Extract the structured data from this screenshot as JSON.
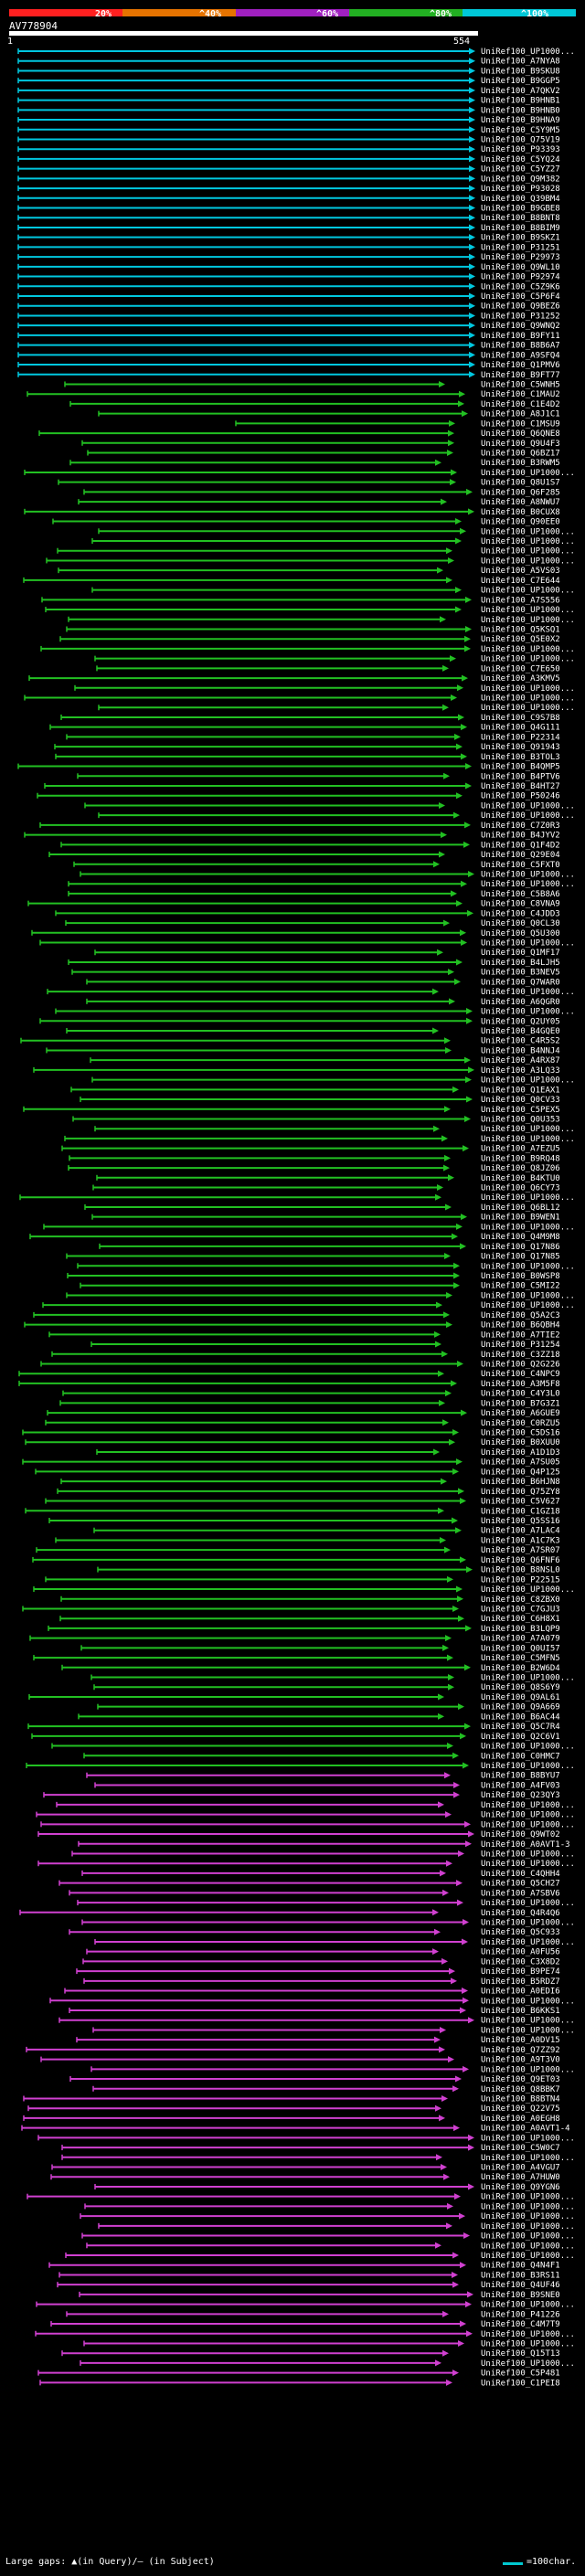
{
  "scale": {
    "labels": [
      "20%",
      "^40%",
      "^60%",
      "^80%",
      "^100%"
    ],
    "colors": [
      "#ff2020",
      "#e67300",
      "#a020c0",
      "#22b022",
      "#00c8d8"
    ]
  },
  "query": {
    "id": "AV778904",
    "start": "1",
    "end": "554"
  },
  "hit_labels": [
    "UniRef100_UP1000...",
    "UniRef100_A7NYA8",
    "UniRef100_B9SKU8",
    "UniRef100_B9GGP5",
    "UniRef100_A7QKV2",
    "UniRef100_B9HNB1",
    "UniRef100_B9HNB0",
    "UniRef100_B9HNA9",
    "UniRef100_C5Y9M5",
    "UniRef100_Q75V19",
    "UniRef100_P93393",
    "UniRef100_C5YQ24",
    "UniRef100_C5YZ27",
    "UniRef100_Q9M382",
    "UniRef100_P93028",
    "UniRef100_Q39BM4",
    "UniRef100_B9GBE8",
    "UniRef100_B8BNT8",
    "UniRef100_B8BIM9",
    "UniRef100_B9SKZ1",
    "UniRef100_P31251",
    "UniRef100_P29973",
    "UniRef100_Q9WL10",
    "UniRef100_P92974",
    "UniRef100_C5Z9K6",
    "UniRef100_C5P6F4",
    "UniRef100_Q9BEZ6",
    "UniRef100_P31252",
    "UniRef100_Q9WNQ2",
    "UniRef100_B9FY11",
    "UniRef100_B8B6A7",
    "UniRef100_A9SFQ4",
    "UniRef100_Q1PMV6",
    "UniRef100_B9FT77",
    "UniRef100_C5WNH5",
    "UniRef100_C1MAU2",
    "UniRef100_C1E4D2",
    "UniRef100_A8J1C1",
    "UniRef100_C1MSU9",
    "UniRef100_Q6QNE8",
    "UniRef100_Q9U4F3",
    "UniRef100_Q6BZ17",
    "UniRef100_B3RWM5",
    "UniRef100_UP1000...",
    "UniRef100_Q8U1S7",
    "UniRef100_Q6F285",
    "UniRef100_A8NWU7",
    "UniRef100_B0CUX8",
    "UniRef100_Q90EE0",
    "UniRef100_UP1000...",
    "UniRef100_UP1000...",
    "UniRef100_UP1000...",
    "UniRef100_UP1000...",
    "UniRef100_A5VS03",
    "UniRef100_C7E644",
    "UniRef100_UP1000...",
    "UniRef100_A7S556",
    "UniRef100_UP1000...",
    "UniRef100_UP1000...",
    "UniRef100_Q5KSQ1",
    "UniRef100_Q5E0X2",
    "UniRef100_UP1000...",
    "UniRef100_UP1000...",
    "UniRef100_C7E650",
    "UniRef100_A3KMV5",
    "UniRef100_UP1000...",
    "UniRef100_UP1000...",
    "UniRef100_UP1000...",
    "UniRef100_C9S7B8",
    "UniRef100_Q4G111",
    "UniRef100_P22314",
    "UniRef100_Q91943",
    "UniRef100_B3TOL3",
    "UniRef100_B4QMP5",
    "UniRef100_B4PTV6",
    "UniRef100_B4HT27",
    "UniRef100_P50246",
    "UniRef100_UP1000...",
    "UniRef100_UP1000...",
    "UniRef100_C7Z0R3",
    "UniRef100_B4JYV2",
    "UniRef100_Q1F4D2",
    "UniRef100_Q29E04",
    "UniRef100_C5FXT0",
    "UniRef100_UP1000...",
    "UniRef100_UP1000...",
    "UniRef100_C5B8A6",
    "UniRef100_C8VNA9",
    "UniRef100_C4JDD3",
    "UniRef100_Q0CL30",
    "UniRef100_Q5U300",
    "UniRef100_UP1000...",
    "UniRef100_Q1MF17",
    "UniRef100_B4LJH5",
    "UniRef100_B3NEV5",
    "UniRef100_Q7WAR0",
    "UniRef100_UP1000...",
    "UniRef100_A6QGR0",
    "UniRef100_UP1000...",
    "UniRef100_Q2UY05",
    "UniRef100_B4GQE0",
    "UniRef100_C4R5S2",
    "UniRef100_B4NNJ4",
    "UniRef100_A4RX87",
    "UniRef100_A3LQ33",
    "UniRef100_UP1000...",
    "UniRef100_Q1EAX1",
    "UniRef100_Q0CV33",
    "UniRef100_C5PEX5",
    "UniRef100_Q0U353",
    "UniRef100_UP1000...",
    "UniRef100_UP1000...",
    "UniRef100_A7EZU5",
    "UniRef100_B9RQ48",
    "UniRef100_Q8JZ06",
    "UniRef100_B4KTU0",
    "UniRef100_Q6CY73",
    "UniRef100_UP1000...",
    "UniRef100_Q6BL12",
    "UniRef100_B9WEN1",
    "UniRef100_UP1000...",
    "UniRef100_Q4M9M8",
    "UniRef100_Q17N86",
    "UniRef100_Q17N85",
    "UniRef100_UP1000...",
    "UniRef100_B0WSP8",
    "UniRef100_C5MI22",
    "UniRef100_UP1000...",
    "UniRef100_UP1000...",
    "UniRef100_Q5A2C3",
    "UniRef100_B6QBH4",
    "UniRef100_A7TIE2",
    "UniRef100_P31254",
    "UniRef100_C3ZZ18",
    "UniRef100_Q2G226",
    "UniRef100_C4NPC9",
    "UniRef100_A3M5F8",
    "UniRef100_C4Y3L0",
    "UniRef100_B7G3Z1",
    "UniRef100_A6GUE9",
    "UniRef100_C0RZU5",
    "UniRef100_C5DS16",
    "UniRef100_B0XUU0",
    "UniRef100_A1D1D3",
    "UniRef100_A7SU05",
    "UniRef100_Q4P125",
    "UniRef100_B6HJN8",
    "UniRef100_Q75ZY8",
    "UniRef100_C5V627",
    "UniRef100_C1GZ18",
    "UniRef100_Q5SS16",
    "UniRef100_A7LAC4",
    "UniRef100_A1C7K3",
    "UniRef100_A7SR07",
    "UniRef100_Q6FNF6",
    "UniRef100_B8NSL0",
    "UniRef100_P22515",
    "UniRef100_UP1000...",
    "UniRef100_C8ZBX0",
    "UniRef100_C7GJU3",
    "UniRef100_C6H8X1",
    "UniRef100_B3LQP9",
    "UniRef100_A7A079",
    "UniRef100_Q0UI57",
    "UniRef100_C5MFN5",
    "UniRef100_B2W6D4",
    "UniRef100_UP1000...",
    "UniRef100_Q8S6Y9",
    "UniRef100_Q9AL61",
    "UniRef100_Q9A669",
    "UniRef100_B6AC44",
    "UniRef100_Q5C7R4",
    "UniRef100_Q2C6V1",
    "UniRef100_UP1000...",
    "UniRef100_C0HMC7",
    "UniRef100_UP1000...",
    "UniRef100_B8BYU7",
    "UniRef100_A4FV03",
    "UniRef100_Q23QY3",
    "UniRef100_UP1000...",
    "UniRef100_UP1000...",
    "UniRef100_UP1000...",
    "UniRef100_Q9WT02",
    "UniRef100_A0AVT1-3",
    "UniRef100_UP1000...",
    "UniRef100_UP1000...",
    "UniRef100_C4QHH4",
    "UniRef100_Q5CH27",
    "UniRef100_A7SBV6",
    "UniRef100_UP1000...",
    "UniRef100_Q4R4Q6",
    "UniRef100_UP1000...",
    "UniRef100_Q5C933",
    "UniRef100_UP1000...",
    "UniRef100_A0FU56",
    "UniRef100_C3X8D2",
    "UniRef100_B9PE74",
    "UniRef100_B5RDZ7",
    "UniRef100_A0EDI6",
    "UniRef100_UP1000...",
    "UniRef100_B6KKS1",
    "UniRef100_UP1000...",
    "UniRef100_UP1000...",
    "UniRef100_A0DV15",
    "UniRef100_Q7ZZ92",
    "UniRef100_A9T3V0",
    "UniRef100_UP1000...",
    "UniRef100_Q9ET03",
    "UniRef100_Q8BBK7",
    "UniRef100_B8BTN4",
    "UniRef100_Q22V75",
    "UniRef100_A0EGH8",
    "UniRef100_A0AVT1-4",
    "UniRef100_UP1000...",
    "UniRef100_C5W0C7",
    "UniRef100_UP1000...",
    "UniRef100_A4VGU7",
    "UniRef100_A7HUW0",
    "UniRef100_Q9YGN6",
    "UniRef100_UP1000...",
    "UniRef100_UP1000...",
    "UniRef100_UP1000...",
    "UniRef100_UP1000...",
    "UniRef100_UP1000...",
    "UniRef100_UP1000...",
    "UniRef100_UP1000...",
    "UniRef100_Q4N4F1",
    "UniRef100_B3RS11",
    "UniRef100_Q4UF46",
    "UniRef100_B9SNE0",
    "UniRef100_UP1000...",
    "UniRef100_P41226",
    "UniRef100_C4M7T9",
    "UniRef100_UP1000...",
    "UniRef100_UP1000...",
    "UniRef100_Q15T13",
    "UniRef100_UP1000...",
    "UniRef100_C5P481",
    "UniRef100_C1PEI8"
  ],
  "footer": {
    "gaps_text": "Large gaps: ▲(in Query)/— (in Subject)",
    "legend_text": "=100char."
  }
}
